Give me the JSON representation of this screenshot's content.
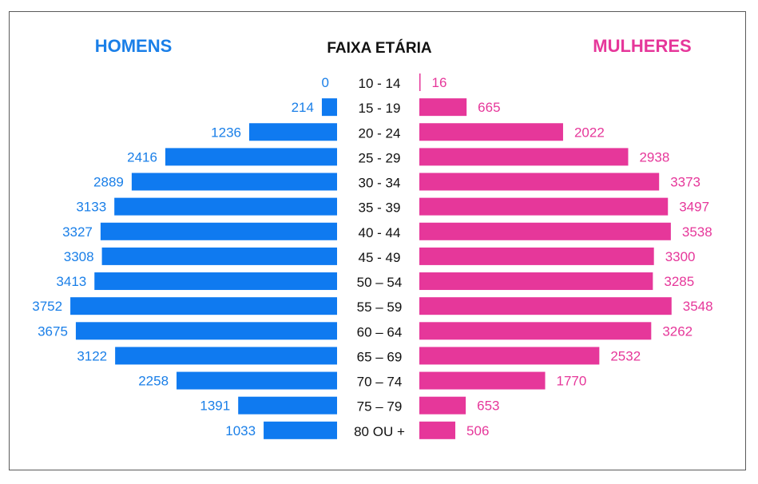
{
  "chart_data": {
    "type": "bar",
    "subtype": "population-pyramid",
    "title": "FAIXA ETÁRIA",
    "left_header": "HOMENS",
    "right_header": "MULHERES",
    "categories": [
      "10 - 14",
      "15 - 19",
      "20 - 24",
      "25 - 29",
      "30 - 34",
      "35 - 39",
      "40 - 44",
      "45 - 49",
      "50 – 54",
      "55 – 59",
      "60 – 64",
      "65 – 69",
      "70 – 74",
      "75 – 79",
      "80 OU +"
    ],
    "series": [
      {
        "name": "HOMENS",
        "side": "left",
        "color": "#0f7af0",
        "label_color": "#1a7fe8",
        "values": [
          0,
          214,
          1236,
          2416,
          2889,
          3133,
          3327,
          3308,
          3413,
          3752,
          3675,
          3122,
          2258,
          1391,
          1033
        ]
      },
      {
        "name": "MULHERES",
        "side": "right",
        "color": "#e6379a",
        "label_color": "#e6379a",
        "values": [
          16,
          665,
          2022,
          2938,
          3373,
          3497,
          3538,
          3300,
          3285,
          3548,
          3262,
          2532,
          1770,
          653,
          506
        ]
      }
    ],
    "xlim": [
      0,
      4000
    ],
    "grid": false,
    "legend": "none"
  }
}
